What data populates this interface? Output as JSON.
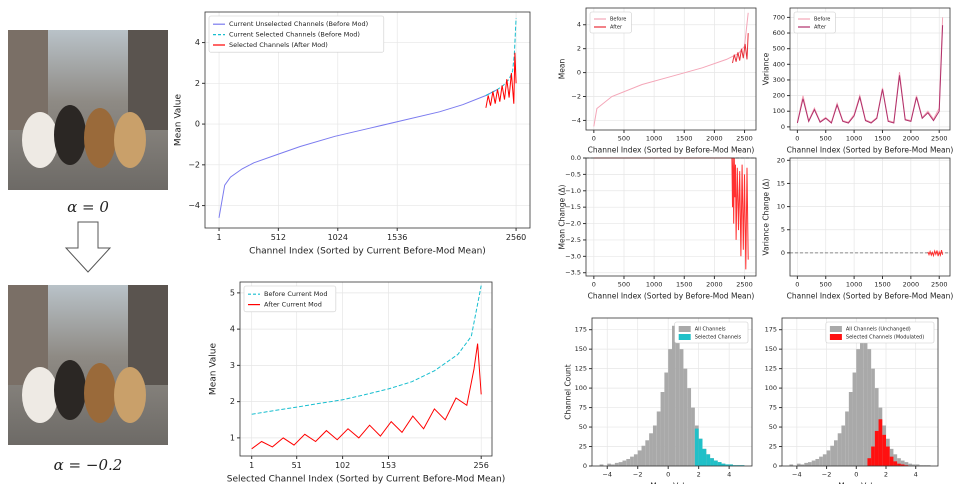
{
  "figure_labels": [
    "α = 0",
    "α = −0.2"
  ],
  "chart_data": [
    {
      "type": "line",
      "xlabel": "Channel Index (Sorted by Current Before-Mod Mean)",
      "ylabel": "Mean Value",
      "xlim": [
        -120,
        2680
      ],
      "ylim": [
        -5.1,
        5.5
      ],
      "xticks": [
        1,
        512,
        1024,
        1536,
        2560
      ],
      "yticks": [
        {
          "value": -4,
          "label": "−4"
        },
        {
          "value": -2,
          "label": "−2"
        },
        0,
        2,
        4
      ],
      "grid": true,
      "legend": "upper left",
      "series": [
        {
          "name": "Current Unselected Channels (Before Mod)",
          "color": "#7b7bef",
          "style": "solid",
          "x": [
            1,
            50,
            100,
            200,
            300,
            500,
            700,
            1000,
            1300,
            1600,
            1900,
            2100,
            2300,
            2400
          ],
          "values": [
            -4.6,
            -3.0,
            -2.6,
            -2.2,
            -1.9,
            -1.5,
            -1.1,
            -0.6,
            -0.2,
            0.2,
            0.6,
            0.95,
            1.4,
            1.7
          ]
        },
        {
          "name": "Current Selected Channels (Before Mod)",
          "color": "#17becf",
          "style": "dashed",
          "x": [
            2300,
            2350,
            2400,
            2450,
            2500,
            2530,
            2545,
            2560
          ],
          "values": [
            1.4,
            1.55,
            1.7,
            1.9,
            2.2,
            2.6,
            3.4,
            5.2
          ]
        },
        {
          "name": "Selected Channels (After Mod)",
          "color": "#ff0000",
          "style": "solid",
          "x": [
            2300,
            2320,
            2340,
            2360,
            2380,
            2400,
            2420,
            2440,
            2460,
            2480,
            2500,
            2520,
            2540,
            2550,
            2560
          ],
          "values": [
            0.8,
            1.4,
            0.9,
            1.6,
            1.0,
            1.7,
            1.1,
            1.9,
            1.2,
            2.2,
            1.3,
            2.5,
            1.0,
            3.5,
            2.0
          ]
        }
      ]
    },
    {
      "type": "line",
      "xlabel": "Selected Channel Index (Sorted by Current Before-Mod Mean)",
      "ylabel": "Mean Value",
      "xlim": [
        -12,
        268
      ],
      "ylim": [
        0.5,
        5.3
      ],
      "xticks": [
        1,
        51,
        102,
        153,
        256
      ],
      "yticks": [
        1,
        2,
        3,
        4,
        5
      ],
      "grid": true,
      "legend": "upper left",
      "series": [
        {
          "name": "Before Current Mod",
          "color": "#17becf",
          "style": "dashed",
          "x": [
            1,
            25,
            51,
            76,
            102,
            128,
            153,
            179,
            204,
            230,
            245,
            256
          ],
          "values": [
            1.65,
            1.75,
            1.85,
            1.95,
            2.05,
            2.2,
            2.35,
            2.55,
            2.85,
            3.3,
            3.8,
            5.2
          ]
        },
        {
          "name": "After Current Mod",
          "color": "#ff0000",
          "style": "solid",
          "x": [
            1,
            12,
            24,
            36,
            48,
            60,
            72,
            84,
            96,
            108,
            120,
            132,
            144,
            156,
            168,
            180,
            192,
            204,
            216,
            228,
            240,
            248,
            252,
            256
          ],
          "values": [
            0.7,
            0.9,
            0.75,
            1.0,
            0.8,
            1.1,
            0.9,
            1.2,
            0.95,
            1.25,
            1.0,
            1.35,
            1.05,
            1.45,
            1.15,
            1.6,
            1.25,
            1.8,
            1.5,
            2.1,
            1.9,
            2.9,
            3.6,
            2.2
          ]
        }
      ]
    },
    {
      "type": "line",
      "xlabel": "Channel Index (Sorted by Before-Mod Mean)",
      "ylabel": "Mean",
      "xlim": [
        -130,
        2690
      ],
      "ylim": [
        -4.8,
        5.4
      ],
      "xticks": [
        0,
        500,
        1000,
        1500,
        2000,
        2500
      ],
      "yticks": [
        {
          "value": -4,
          "label": "−4"
        },
        {
          "value": -2,
          "label": "−2"
        },
        0,
        2,
        4
      ],
      "grid": true,
      "legend": "upper left",
      "series": [
        {
          "name": "Before",
          "color": "#f4a6b8",
          "style": "solid",
          "x": [
            0,
            50,
            300,
            800,
            1300,
            1800,
            2200,
            2400,
            2500,
            2560
          ],
          "values": [
            -4.5,
            -3,
            -2,
            -1,
            -0.3,
            0.4,
            1.1,
            1.6,
            2.2,
            5
          ]
        },
        {
          "name": "After",
          "color": "#e8303a",
          "style": "solid",
          "x": [
            2300,
            2330,
            2360,
            2390,
            2420,
            2450,
            2480,
            2510,
            2540,
            2560
          ],
          "values": [
            0.8,
            1.5,
            0.9,
            1.7,
            1.0,
            2.0,
            1.2,
            2.4,
            1.1,
            3.3
          ]
        }
      ]
    },
    {
      "type": "line",
      "xlabel": "Channel Index (Sorted by Before-Mod Mean)",
      "ylabel": "Variance",
      "xlim": [
        -130,
        2690
      ],
      "ylim": [
        -20,
        760
      ],
      "xticks": [
        0,
        500,
        1000,
        1500,
        2000,
        2500
      ],
      "yticks": [
        0,
        100,
        200,
        300,
        400,
        500,
        600,
        700
      ],
      "grid": true,
      "legend": "upper left",
      "series": [
        {
          "name": "Before",
          "color": "#f4a6b8",
          "style": "solid",
          "x": [
            0,
            100,
            200,
            300,
            400,
            500,
            600,
            700,
            800,
            900,
            1000,
            1100,
            1200,
            1300,
            1400,
            1500,
            1600,
            1700,
            1800,
            1900,
            2000,
            2100,
            2200,
            2300,
            2400,
            2500,
            2560
          ],
          "values": [
            30,
            200,
            40,
            120,
            35,
            60,
            30,
            150,
            40,
            30,
            80,
            200,
            45,
            30,
            60,
            250,
            40,
            30,
            350,
            50,
            40,
            200,
            60,
            100,
            50,
            120,
            700
          ]
        },
        {
          "name": "After",
          "color": "#b0306a",
          "style": "solid",
          "x": [
            0,
            100,
            200,
            300,
            400,
            500,
            600,
            700,
            800,
            900,
            1000,
            1100,
            1200,
            1300,
            1400,
            1500,
            1600,
            1700,
            1800,
            1900,
            2000,
            2100,
            2200,
            2300,
            2400,
            2500,
            2560
          ],
          "values": [
            25,
            180,
            35,
            110,
            30,
            55,
            25,
            140,
            35,
            25,
            70,
            190,
            40,
            25,
            55,
            240,
            35,
            25,
            330,
            45,
            35,
            190,
            55,
            90,
            40,
            100,
            650
          ]
        }
      ]
    },
    {
      "type": "line",
      "xlabel": "Channel Index (Sorted by Before-Mod Mean)",
      "ylabel": "Mean Change (Δ)",
      "xlim": [
        -130,
        2690
      ],
      "ylim": [
        -3.6,
        0
      ],
      "xticks": [
        0,
        500,
        1000,
        1500,
        2000,
        2500
      ],
      "yticks": [
        {
          "value": 0,
          "label": "0.0"
        },
        {
          "value": -0.5,
          "label": "−0.5"
        },
        {
          "value": -1,
          "label": "−1.0"
        },
        {
          "value": -1.5,
          "label": "−1.5"
        },
        {
          "value": -2,
          "label": "−2.0"
        },
        {
          "value": -2.5,
          "label": "−2.5"
        },
        {
          "value": -3,
          "label": "−3.0"
        },
        {
          "value": -3.5,
          "label": "−3.5"
        }
      ],
      "grid": true,
      "hline": 0,
      "series": [
        {
          "color": "#ff3030",
          "style": "solid",
          "x": [
            0,
            2290,
            2300,
            2310,
            2320,
            2330,
            2340,
            2350,
            2360,
            2380,
            2400,
            2420,
            2440,
            2460,
            2480,
            2500,
            2520,
            2540,
            2560
          ],
          "values": [
            0,
            0,
            -1.5,
            0,
            -2.0,
            0,
            -1.2,
            -0.2,
            -2.5,
            -0.3,
            -2.2,
            -0.4,
            -3.0,
            -0.2,
            -2.8,
            -0.5,
            -3.4,
            -0.3,
            -3.1
          ]
        }
      ]
    },
    {
      "type": "line",
      "xlabel": "Channel Index (Sorted by Before-Mod Mean)",
      "ylabel": "Variance Change (Δ)",
      "xlim": [
        -130,
        2690
      ],
      "ylim": [
        -5,
        20.5
      ],
      "xticks": [
        0,
        500,
        1000,
        1500,
        2000,
        2500
      ],
      "yticks": [
        0,
        5,
        10,
        15,
        20
      ],
      "grid": true,
      "hline": 0,
      "series": [
        {
          "color": "#ff3030",
          "style": "solid",
          "x": [
            2300,
            2320,
            2340,
            2360,
            2380,
            2400,
            2420,
            2440,
            2460,
            2480,
            2500,
            2520,
            2540,
            2560
          ],
          "values": [
            0.2,
            -0.4,
            0.3,
            -0.5,
            0.1,
            -0.6,
            0.4,
            -0.3,
            0.5,
            -0.7,
            0.2,
            -0.5,
            0.6,
            -0.4
          ]
        }
      ]
    },
    {
      "type": "histogram",
      "xlabel": "Mean Value",
      "ylabel": "Channel Count",
      "xlim": [
        -5,
        5.5
      ],
      "ylim": [
        0,
        190
      ],
      "xticks": [
        {
          "value": -4,
          "label": "−4"
        },
        {
          "value": -2,
          "label": "−2"
        },
        0,
        2,
        4
      ],
      "yticks": [
        0,
        25,
        50,
        75,
        100,
        125,
        150,
        175
      ],
      "grid": true,
      "legend": "upper right",
      "bins": [
        -4.5,
        -4.25,
        -4,
        -3.75,
        -3.5,
        -3.25,
        -3,
        -2.75,
        -2.5,
        -2.25,
        -2,
        -1.75,
        -1.5,
        -1.25,
        -1,
        -0.75,
        -0.5,
        -0.25,
        0,
        0.25,
        0.5,
        0.75,
        1,
        1.25,
        1.5,
        1.75,
        2,
        2.25,
        2.5,
        2.75,
        3,
        3.25,
        3.5,
        3.75,
        4,
        4.25,
        4.5,
        4.75,
        5
      ],
      "series": [
        {
          "name": "All Channels",
          "color": "#a9a9a9",
          "values": [
            2,
            0,
            3,
            2,
            4,
            5,
            7,
            9,
            12,
            15,
            20,
            26,
            33,
            42,
            52,
            70,
            95,
            120,
            150,
            180,
            170,
            150,
            125,
            100,
            75,
            52,
            35,
            22,
            15,
            10,
            7,
            5,
            3,
            2,
            2,
            1,
            1,
            1
          ]
        },
        {
          "name": "Selected Channels",
          "color": "#20c0c8",
          "values": [
            0,
            0,
            0,
            0,
            0,
            0,
            0,
            0,
            0,
            0,
            0,
            0,
            0,
            0,
            0,
            0,
            0,
            0,
            0,
            0,
            0,
            0,
            0,
            0,
            0,
            48,
            35,
            22,
            15,
            10,
            7,
            5,
            3,
            2,
            2,
            1,
            1,
            1
          ]
        }
      ]
    },
    {
      "type": "histogram",
      "xlabel": "Mean Value",
      "ylabel": null,
      "xlim": [
        -5,
        5.5
      ],
      "ylim": [
        0,
        190
      ],
      "xticks": [
        {
          "value": -4,
          "label": "−4"
        },
        {
          "value": -2,
          "label": "−2"
        },
        0,
        2,
        4
      ],
      "yticks": [
        0,
        25,
        50,
        75,
        100,
        125,
        150,
        175
      ],
      "grid": true,
      "legend": "upper right",
      "bins": [
        -4.5,
        -4.25,
        -4,
        -3.75,
        -3.5,
        -3.25,
        -3,
        -2.75,
        -2.5,
        -2.25,
        -2,
        -1.75,
        -1.5,
        -1.25,
        -1,
        -0.75,
        -0.5,
        -0.25,
        0,
        0.25,
        0.5,
        0.75,
        1,
        1.25,
        1.5,
        1.75,
        2,
        2.25,
        2.5,
        2.75,
        3,
        3.25,
        3.5,
        3.75,
        4,
        4.25,
        4.5,
        4.75,
        5
      ],
      "series": [
        {
          "name": "All Channels (Unchanged)",
          "color": "#a9a9a9",
          "values": [
            2,
            0,
            3,
            2,
            4,
            5,
            7,
            9,
            12,
            15,
            20,
            26,
            33,
            42,
            52,
            70,
            95,
            120,
            150,
            180,
            170,
            150,
            125,
            100,
            75,
            52,
            35,
            22,
            15,
            10,
            7,
            5,
            3,
            2,
            2,
            1,
            1,
            1
          ]
        },
        {
          "name": "Selected Channels (Modulated)",
          "color": "#ff1010",
          "values": [
            0,
            0,
            0,
            0,
            0,
            0,
            0,
            0,
            0,
            0,
            0,
            0,
            0,
            0,
            0,
            0,
            0,
            0,
            0,
            0,
            0,
            10,
            25,
            45,
            60,
            40,
            25,
            12,
            6,
            3,
            2,
            1,
            0,
            0,
            0,
            0,
            0,
            0
          ]
        }
      ]
    }
  ]
}
